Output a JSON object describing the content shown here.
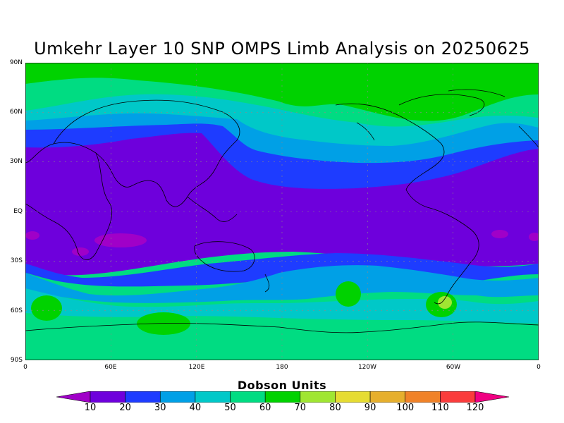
{
  "title": "Umkehr Layer 10 SNP OMPS Limb Analysis on 20250625",
  "lat_labels": [
    "90N",
    "60N",
    "30N",
    "EQ",
    "30S",
    "60S",
    "90S"
  ],
  "lon_labels": [
    "0",
    "60E",
    "120E",
    "180",
    "120W",
    "60W",
    "0"
  ],
  "colorbar": {
    "title": "Dobson Units",
    "ticks": [
      "10",
      "20",
      "30",
      "40",
      "50",
      "60",
      "70",
      "80",
      "90",
      "100",
      "110",
      "120"
    ],
    "colors": [
      "#a000c8",
      "#6e00dc",
      "#1e3cff",
      "#00a0e6",
      "#00c8c8",
      "#00dc82",
      "#00d200",
      "#a0e632",
      "#e6dc32",
      "#e6af2d",
      "#f08228",
      "#fa3c3c",
      "#f00082"
    ]
  },
  "colors": {
    "band_10": "#b400b4",
    "band_20": "#6e00dc",
    "band_30": "#1e3cff",
    "band_40": "#00a0e6",
    "band_50": "#00c8c8",
    "band_60": "#00dc82",
    "band_70": "#00d200",
    "band_80": "#a0e632"
  }
}
